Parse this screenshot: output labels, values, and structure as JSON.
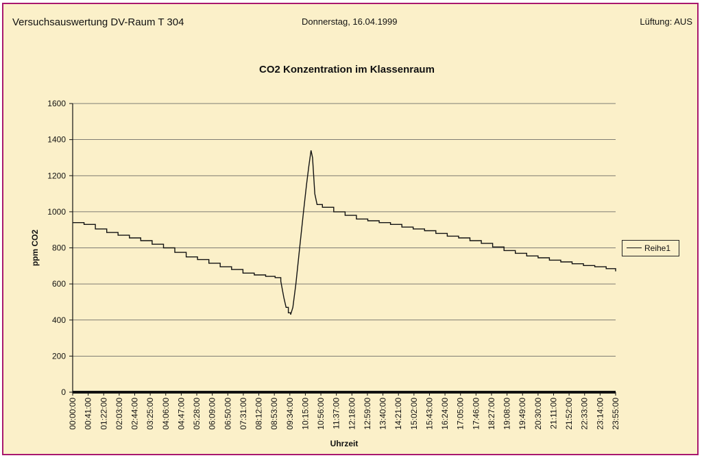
{
  "header": {
    "left": "Versuchsauswertung DV-Raum T 304",
    "center": "Donnerstag, 16.04.1999",
    "right": "Lüftung: AUS"
  },
  "chart_data": {
    "type": "line",
    "title": "CO2 Konzentration im Klassenraum",
    "xlabel": "Uhrzeit",
    "ylabel": "ppm CO2",
    "ylim": [
      0,
      1600
    ],
    "yticks": [
      0,
      200,
      400,
      600,
      800,
      1000,
      1200,
      1400,
      1600
    ],
    "x_ticks": [
      "00:00:00",
      "00:41:00",
      "01:22:00",
      "02:03:00",
      "02:44:00",
      "03:25:00",
      "04:06:00",
      "04:47:00",
      "05:28:00",
      "06:09:00",
      "06:50:00",
      "07:31:00",
      "08:12:00",
      "08:53:00",
      "09:34:00",
      "10:15:00",
      "10:56:00",
      "11:37:00",
      "12:18:00",
      "12:59:00",
      "13:40:00",
      "14:21:00",
      "15:02:00",
      "15:43:00",
      "16:24:00",
      "17:05:00",
      "17:46:00",
      "18:27:00",
      "19:08:00",
      "19:49:00",
      "20:30:00",
      "21:11:00",
      "21:52:00",
      "22:33:00",
      "23:14:00",
      "23:55:00"
    ],
    "grid": true,
    "legend_position": "right",
    "series": [
      {
        "name": "Reihe1",
        "color": "#111111",
        "points": [
          [
            "00:00",
            940
          ],
          [
            "00:30",
            930
          ],
          [
            "01:00",
            905
          ],
          [
            "01:30",
            885
          ],
          [
            "02:00",
            870
          ],
          [
            "02:30",
            855
          ],
          [
            "03:00",
            840
          ],
          [
            "03:30",
            820
          ],
          [
            "04:00",
            800
          ],
          [
            "04:30",
            775
          ],
          [
            "05:00",
            750
          ],
          [
            "05:30",
            735
          ],
          [
            "06:00",
            715
          ],
          [
            "06:30",
            695
          ],
          [
            "07:00",
            680
          ],
          [
            "07:30",
            660
          ],
          [
            "08:00",
            650
          ],
          [
            "08:30",
            642
          ],
          [
            "08:55",
            635
          ],
          [
            "09:10",
            615
          ],
          [
            "09:18",
            525
          ],
          [
            "09:24",
            470
          ],
          [
            "09:30",
            440
          ],
          [
            "09:36",
            430
          ],
          [
            "09:42",
            470
          ],
          [
            "09:50",
            600
          ],
          [
            "10:00",
            800
          ],
          [
            "10:10",
            1000
          ],
          [
            "10:18",
            1150
          ],
          [
            "10:24",
            1250
          ],
          [
            "10:30",
            1340
          ],
          [
            "10:34",
            1300
          ],
          [
            "10:40",
            1100
          ],
          [
            "10:46",
            1040
          ],
          [
            "11:00",
            1025
          ],
          [
            "11:30",
            1000
          ],
          [
            "12:00",
            980
          ],
          [
            "12:30",
            960
          ],
          [
            "13:00",
            950
          ],
          [
            "13:30",
            940
          ],
          [
            "14:00",
            930
          ],
          [
            "14:30",
            915
          ],
          [
            "15:00",
            905
          ],
          [
            "15:30",
            895
          ],
          [
            "16:00",
            880
          ],
          [
            "16:30",
            865
          ],
          [
            "17:00",
            855
          ],
          [
            "17:30",
            840
          ],
          [
            "18:00",
            825
          ],
          [
            "18:30",
            805
          ],
          [
            "19:00",
            785
          ],
          [
            "19:30",
            770
          ],
          [
            "20:00",
            755
          ],
          [
            "20:30",
            745
          ],
          [
            "21:00",
            732
          ],
          [
            "21:30",
            722
          ],
          [
            "22:00",
            712
          ],
          [
            "22:30",
            702
          ],
          [
            "23:00",
            695
          ],
          [
            "23:30",
            685
          ],
          [
            "23:55",
            670
          ]
        ]
      }
    ]
  }
}
